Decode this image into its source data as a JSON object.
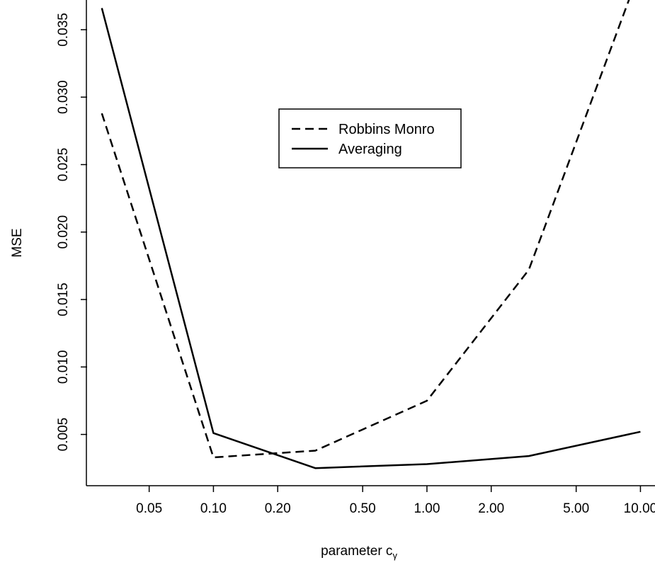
{
  "chart_data": {
    "type": "line",
    "title": "",
    "xlabel": "parameter c",
    "xlabel_subscript": "γ",
    "ylabel": "MSE",
    "x_scale": "log",
    "x_ticks": [
      0.05,
      0.1,
      0.2,
      0.5,
      1,
      2,
      5,
      10
    ],
    "x_tick_labels": [
      "0.05",
      "0.10",
      "0.20",
      "0.50",
      "1.00",
      "2.00",
      "5.00",
      "10.00"
    ],
    "y_ticks": [
      0.005,
      0.01,
      0.015,
      0.02,
      0.025,
      0.03,
      0.035
    ],
    "y_tick_labels": [
      "0.005",
      "0.010",
      "0.015",
      "0.020",
      "0.025",
      "0.030",
      "0.035"
    ],
    "xlim": [
      0.0256,
      11.7
    ],
    "ylim": [
      0.0012,
      0.0372
    ],
    "grid": false,
    "legend_position": "top-center",
    "x": [
      0.03,
      0.1,
      0.3,
      1,
      3,
      10
    ],
    "series": [
      {
        "name": "Robbins Monro",
        "style": "dashed",
        "color": "#000000",
        "values": [
          0.0288,
          0.0033,
          0.0038,
          0.0075,
          0.0172,
          0.0395
        ]
      },
      {
        "name": "Averaging",
        "style": "solid",
        "color": "#000000",
        "values": [
          0.0366,
          0.0051,
          0.0025,
          0.0028,
          0.0034,
          0.0052
        ]
      }
    ]
  }
}
